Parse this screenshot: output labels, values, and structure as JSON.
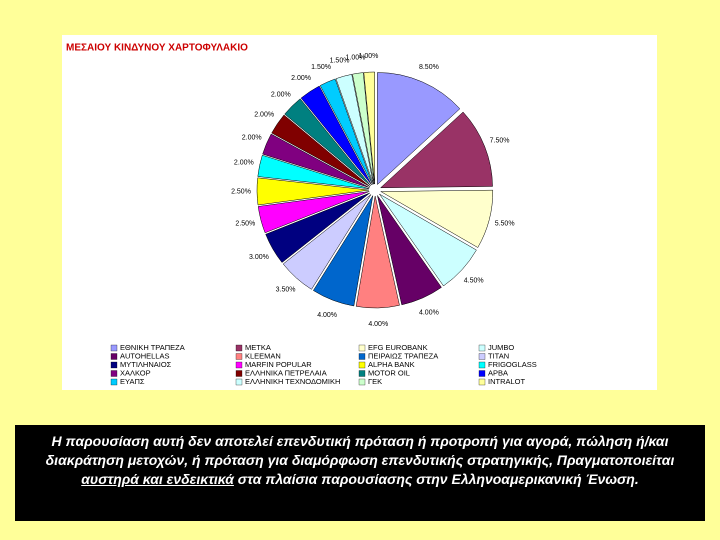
{
  "chart_data": {
    "type": "pie",
    "title": "ΜΕΣΑΙΟΥ ΚΙΝΔΥΝΟΥ ΧΑΡΤΟΦΥΛΑΚΙΟ",
    "categories": [
      "ΕΘΝΙΚΗ ΤΡΑΠΕΖΑ",
      "ΜΕΤΚΑ",
      "EFG EUROBANK",
      "JUMBO",
      "AUTOHELLAS",
      "KLEEMAN",
      "ΠΕΙΡΑΙΩΣ ΤΡΑΠΕΖΑ",
      "ΤΙΤΑΝ",
      "ΜΥΤΙΛΗΝΑΙΟΣ",
      "MARFIN POPULAR",
      "ALPHA BANK",
      "FRIGOGLASS",
      "ΧΑΛΚΟΡ",
      "ΕΛΛΗΝΙΚΑ ΠΕΤΡΕΛΑΙΑ",
      "MOTOR OIL",
      "ΑΡΒΑ",
      "ΕΥΑΠΣ",
      "ΕΛΛΗΝΙΚΗ ΤΕΧΝΟΔΟΜΙΚΗ",
      "ΓΕΚ",
      "INTRALOT"
    ],
    "values": [
      8.5,
      7.5,
      5.5,
      4.5,
      4.0,
      4.0,
      4.0,
      3.5,
      3.0,
      2.5,
      2.5,
      2.0,
      2.0,
      2.0,
      2.0,
      2.0,
      1.5,
      1.5,
      1.0,
      1.0
    ],
    "value_labels": [
      "8.50%",
      "7.50%",
      "5.50%",
      "4.50%",
      "4.00%",
      "4.00%",
      "4.00%",
      "3.50%",
      "3.00%",
      "2.50%",
      "2.50%",
      "2.00%",
      "2.00%",
      "2.00%",
      "2.00%",
      "2.00%",
      "1.50%",
      "1.50%",
      "1.00%",
      "1.00%"
    ],
    "colors": [
      "#9999ff",
      "#993366",
      "#ffffcc",
      "#ccffff",
      "#660066",
      "#ff8080",
      "#0066cc",
      "#ccccff",
      "#000080",
      "#ff00ff",
      "#ffff00",
      "#00ffff",
      "#800080",
      "#800000",
      "#008080",
      "#0000ff",
      "#00ccff",
      "#ccffff",
      "#ccffcc",
      "#ffff99"
    ]
  },
  "disclaimer": {
    "before": "Η παρουσίαση αυτή δεν αποτελεί επενδυτική πρόταση ή προτροπή για αγορά, πώληση ή/και διακράτηση μετοχών, ή πρόταση για διαμόρφωση επενδυτικής στρατηγικής, Πραγματοποιείται ",
    "emphasis": "αυστηρά και ενδεικτικά",
    "after": " στα πλαίσια παρουσίασης στην Ελληνοαμερικανική Ένωση."
  }
}
